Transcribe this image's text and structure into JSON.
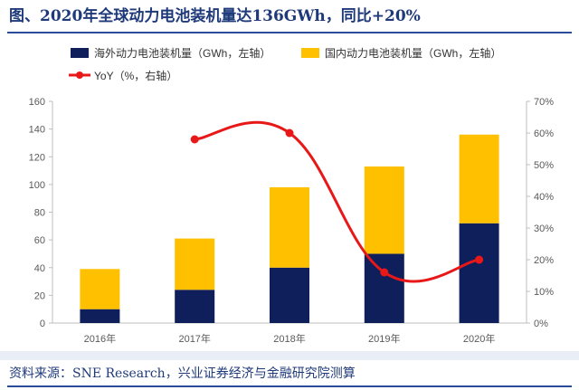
{
  "title": "图、2020年全球动力电池装机量达136GWh，同比+20%",
  "source": "资料来源：SNE Research，兴业证券经济与金融研究院测算",
  "colors": {
    "overseas": "#0f1f5c",
    "domestic": "#ffc000",
    "yoy": "#e81818",
    "axis": "#bfbfbf",
    "title": "#1f3a7a"
  },
  "chart_data": {
    "type": "bar",
    "stacked": true,
    "categories": [
      "2016年",
      "2017年",
      "2018年",
      "2019年",
      "2020年"
    ],
    "series": [
      {
        "name": "海外动力电池装机量（GWh，左轴）",
        "values": [
          10,
          24,
          40,
          50,
          72
        ],
        "axis": "left",
        "kind": "bar"
      },
      {
        "name": "国内动力电池装机量（GWh，左轴）",
        "values": [
          29,
          37,
          58,
          63,
          64
        ],
        "axis": "left",
        "kind": "bar"
      },
      {
        "name": "YoY（%，右轴）",
        "values": [
          null,
          58,
          60,
          16,
          20
        ],
        "axis": "right",
        "kind": "line"
      }
    ],
    "y_left": {
      "min": 0,
      "max": 160,
      "ticks": [
        "0",
        "20",
        "40",
        "60",
        "80",
        "100",
        "120",
        "140",
        "160"
      ]
    },
    "y_right": {
      "min": 0,
      "max": 70,
      "ticks": [
        "0%",
        "10%",
        "20%",
        "30%",
        "40%",
        "50%",
        "60%",
        "70%"
      ]
    },
    "legend_position": "top-left",
    "grid": false
  }
}
